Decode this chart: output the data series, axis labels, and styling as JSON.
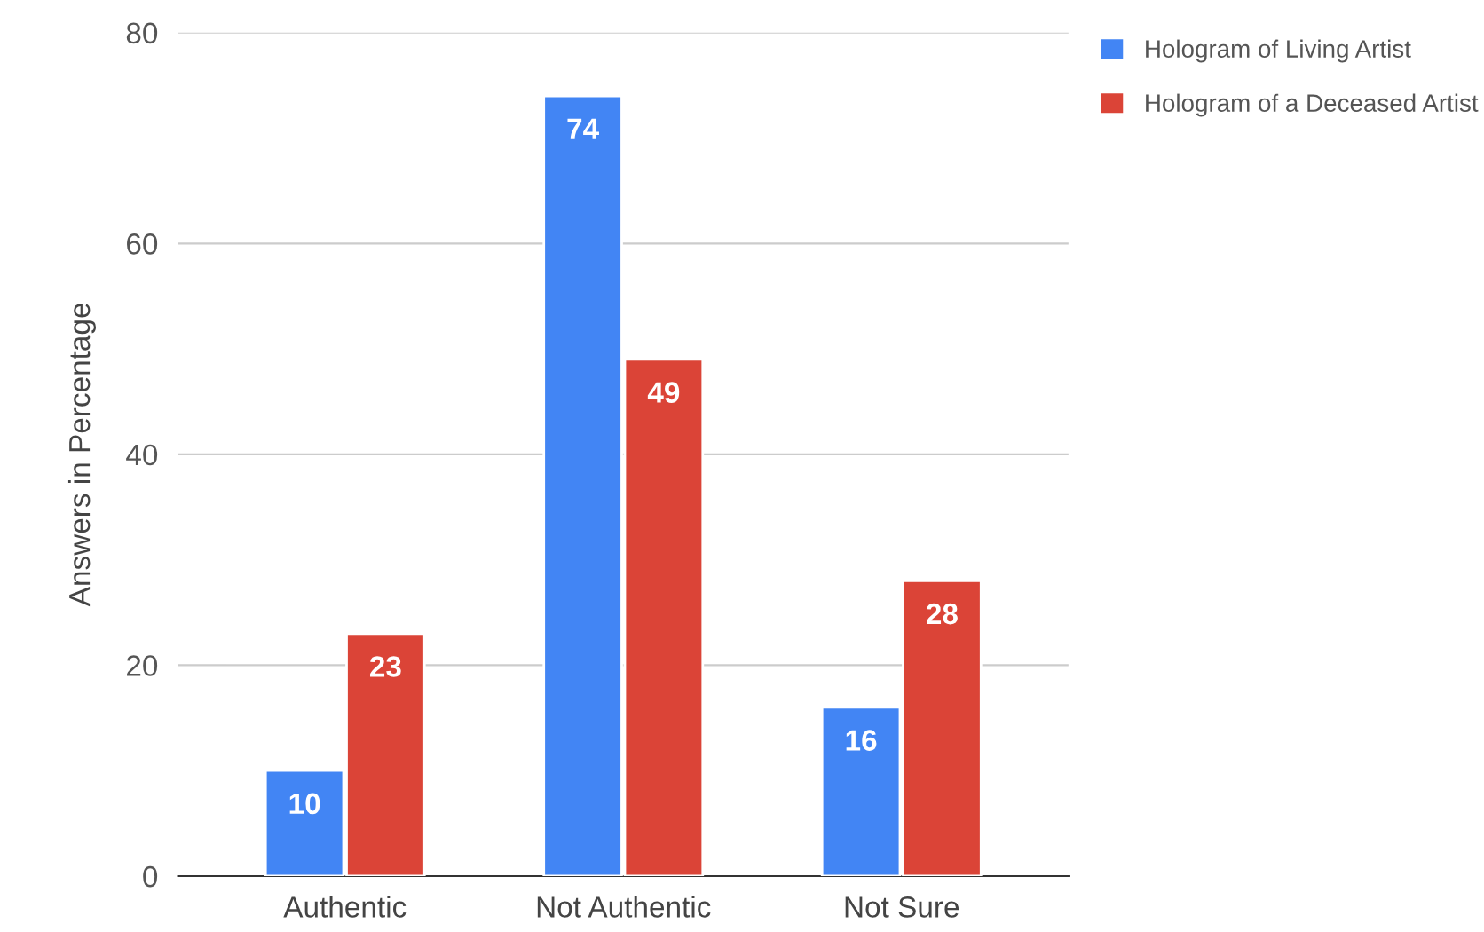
{
  "chart_data": {
    "type": "bar",
    "ylabel": "Answers in Percentage",
    "categories": [
      "Authentic",
      "Not Authentic",
      "Not Sure"
    ],
    "series": [
      {
        "name": "Hologram of Living Artist",
        "color": "#4285f4",
        "values": [
          10,
          74,
          16
        ]
      },
      {
        "name": "Hologram of a Deceased Artist",
        "color": "#db4437",
        "values": [
          23,
          49,
          28
        ]
      }
    ],
    "ylim": [
      0,
      80
    ],
    "yticks": [
      0,
      20,
      40,
      60,
      80
    ],
    "grid": "y",
    "legend": "top right",
    "data_labels": true
  }
}
